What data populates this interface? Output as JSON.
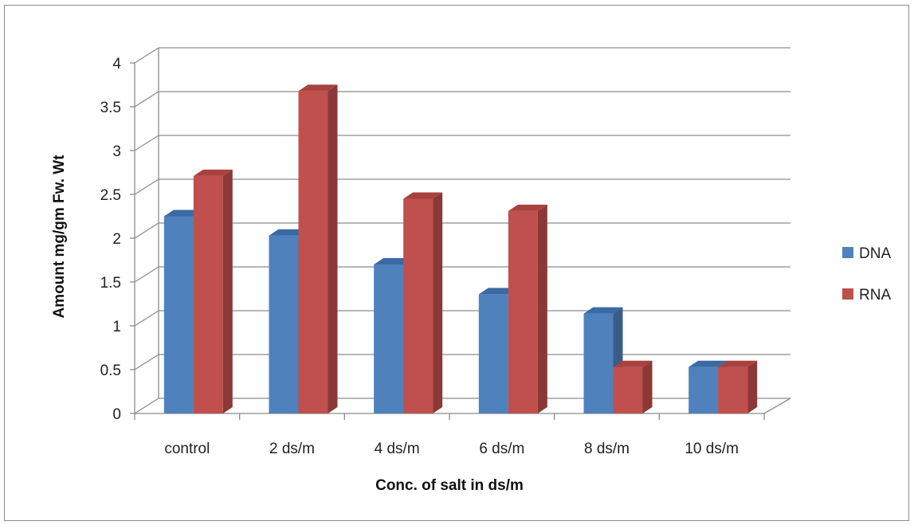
{
  "chart_data": {
    "type": "bar",
    "title": "",
    "xlabel": "Conc. of salt in ds/m",
    "ylabel": "Amount mg/gm  Fw. Wt",
    "categories": [
      "control",
      "2 ds/m",
      "4 ds/m",
      "6 ds/m",
      "8 ds/m",
      "10 ds/m"
    ],
    "series": [
      {
        "name": "DNA",
        "values": [
          2.25,
          2.03,
          1.7,
          1.36,
          1.14,
          0.53
        ],
        "color": "#4f81bd",
        "side_color": "#385d8a",
        "top_color": "#3a6aa3"
      },
      {
        "name": "RNA",
        "values": [
          2.71,
          3.68,
          2.45,
          2.31,
          0.53,
          0.53
        ],
        "color": "#c0504d",
        "side_color": "#8c3836",
        "top_color": "#a8423f"
      }
    ],
    "ylim": [
      0,
      4
    ],
    "yticks": [
      "0",
      "0.5",
      "1",
      "1.5",
      "2",
      "2.5",
      "3",
      "3.5",
      "4"
    ],
    "grid": true,
    "legend_position": "right",
    "style": "3d-clustered-column"
  }
}
